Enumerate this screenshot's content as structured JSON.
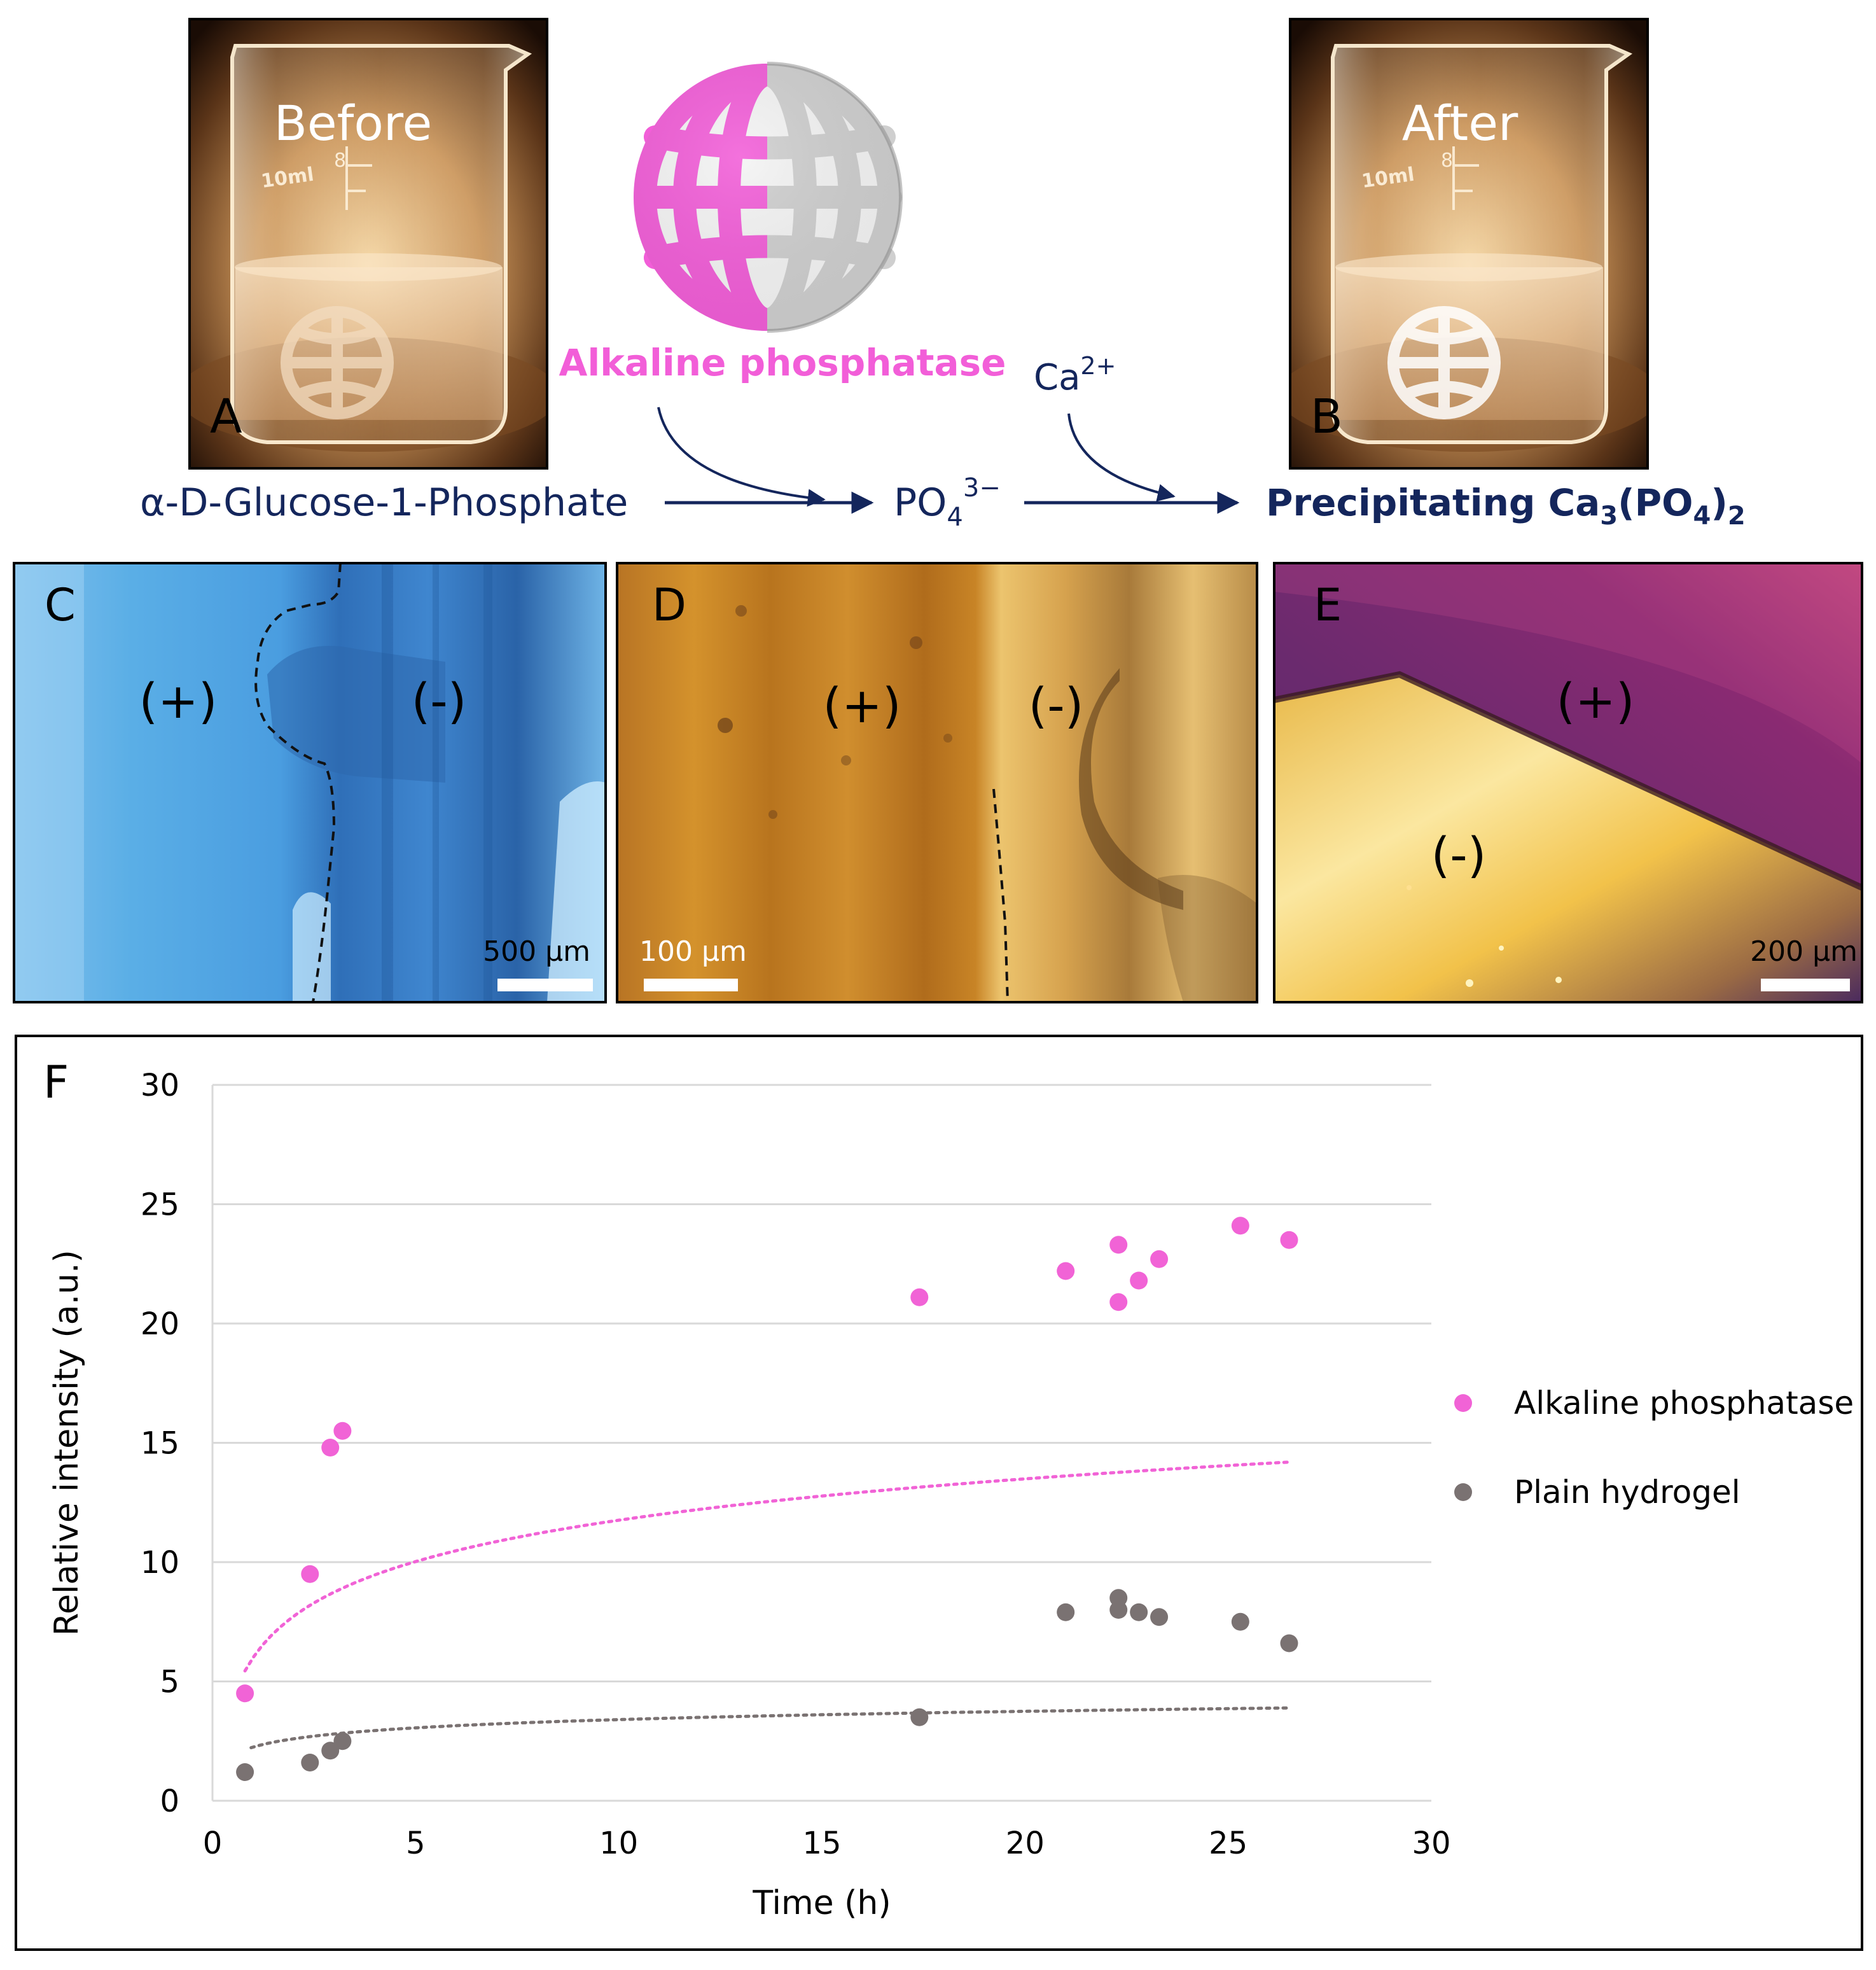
{
  "colors": {
    "accent_pink": "#f25ed8",
    "navy": "#14265c",
    "gray_series": "#7a7272",
    "pink_series": "#f163d6"
  },
  "panel_a": {
    "overlay_label": "Before",
    "letter": "A"
  },
  "panel_b": {
    "overlay_label": "After",
    "letter": "B"
  },
  "beaker_marks": {
    "volume": "10ml",
    "mark_8": "8"
  },
  "enzyme": {
    "label": "Alkaline phosphatase"
  },
  "reaction": {
    "substrate": "α-D-Glucose-1-Phosphate",
    "intermediate_base": "PO",
    "intermediate_sub": "4",
    "intermediate_sup": "3−",
    "cation_base": "Ca",
    "cation_sup": "2+",
    "product_prefix": "Precipitating Ca",
    "product_sub1": "3",
    "product_mid": "(PO",
    "product_sub2": "4",
    "product_close": ")",
    "product_sub3": "2"
  },
  "micrographs": [
    {
      "letter": "C",
      "plus": "(+)",
      "minus": "(-)",
      "scale": "500 μm"
    },
    {
      "letter": "D",
      "plus": "(+)",
      "minus": "(-)",
      "scale": "100 μm"
    },
    {
      "letter": "E",
      "plus": "(+)",
      "minus": "(-)",
      "scale": "200 μm"
    }
  ],
  "chart_data": {
    "type": "scatter",
    "panel_letter": "F",
    "xlabel": "Time (h)",
    "ylabel": "Relative intensity (a.u.)",
    "xlim": [
      0,
      30
    ],
    "ylim": [
      0,
      30
    ],
    "xticks": [
      0,
      5,
      10,
      15,
      20,
      25,
      30
    ],
    "yticks": [
      0,
      5,
      10,
      15,
      20,
      25,
      30
    ],
    "grid": "horizontal",
    "legend_position": "right",
    "trendline": "logarithmic, dotted",
    "series": [
      {
        "name": "Alkaline phosphatase",
        "color": "#f163d6",
        "x": [
          0.8,
          2.4,
          2.9,
          3.2,
          17.4,
          21.0,
          22.3,
          22.3,
          22.8,
          23.3,
          25.3,
          26.5
        ],
        "y": [
          4.5,
          9.5,
          14.8,
          15.5,
          21.1,
          22.2,
          23.3,
          20.9,
          21.8,
          22.7,
          24.1,
          23.5
        ],
        "trend": {
          "a": 2.5,
          "b": 6.0,
          "x_from": 0.8,
          "x_to": 26.5
        }
      },
      {
        "name": "Plain hydrogel",
        "color": "#7a7272",
        "x": [
          0.8,
          2.4,
          2.9,
          3.2,
          17.4,
          21.0,
          22.3,
          22.3,
          22.8,
          23.3,
          25.3,
          26.5
        ],
        "y": [
          1.2,
          1.6,
          2.1,
          2.5,
          3.5,
          7.9,
          8.5,
          8.0,
          7.9,
          7.7,
          7.5,
          6.6
        ],
        "trend": {
          "a": 0.5,
          "b": 2.25,
          "x_from": 0.95,
          "x_to": 26.5
        }
      }
    ]
  }
}
